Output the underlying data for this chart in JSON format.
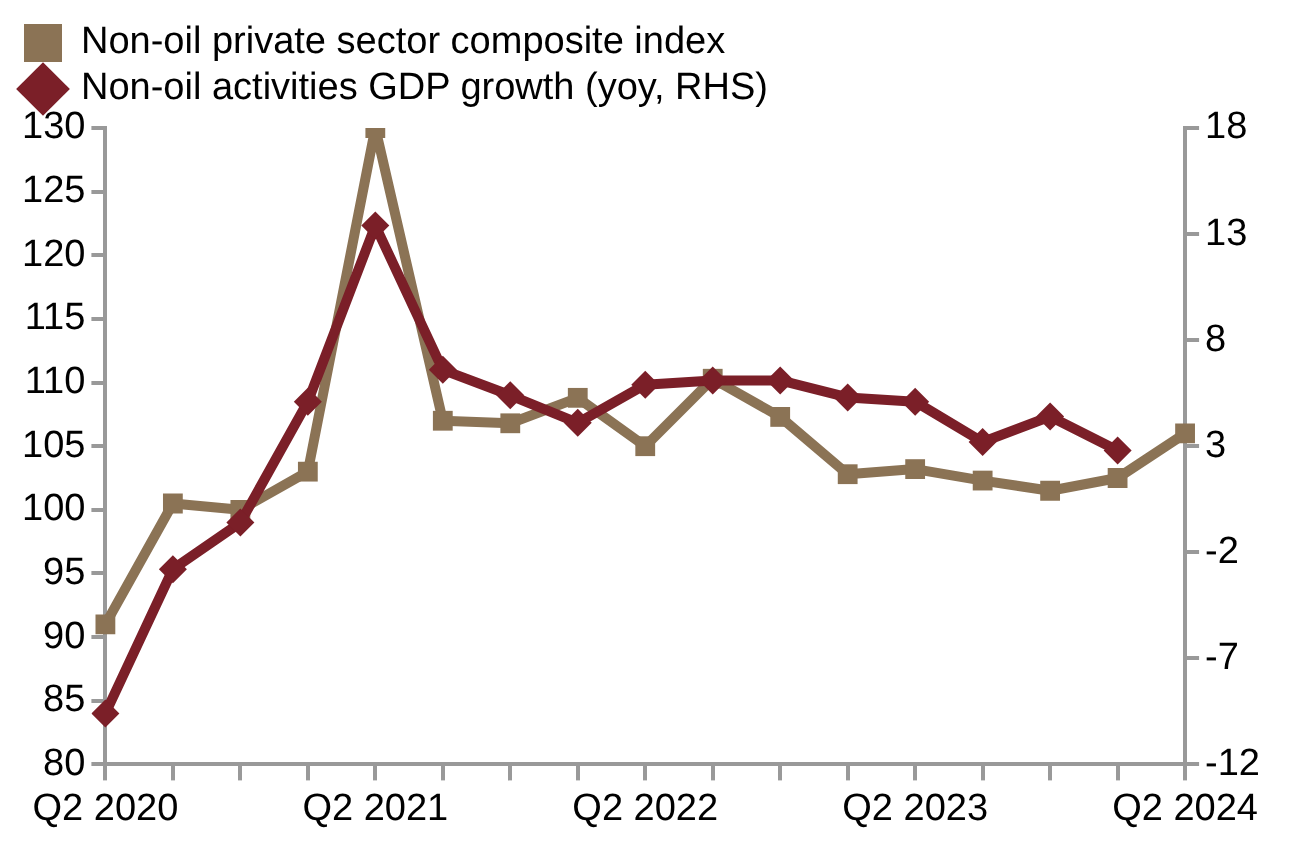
{
  "chart_data": {
    "type": "line",
    "categories": [
      "Q2 2020",
      null,
      null,
      null,
      "Q2 2021",
      null,
      null,
      null,
      "Q2 2022",
      null,
      null,
      null,
      "Q2 2023",
      null,
      null,
      null,
      "Q2 2024"
    ],
    "series": [
      {
        "name": "Non-oil private sector composite index",
        "color": "#8b7355",
        "marker": "square",
        "values": [
          91,
          100.5,
          100,
          103,
          130,
          107,
          106.8,
          108.8,
          105,
          110.3,
          107.3,
          102.8,
          103.2,
          102.3,
          101.5,
          102.5,
          106
        ]
      },
      {
        "name": "Non-oil activities GDP growth (yoy, RHS)",
        "color": "#7b1f28",
        "marker": "diamond",
        "axis": "y2",
        "values": [
          -9.6,
          -2.8,
          -0.6,
          5.1,
          13.4,
          6.6,
          5.4,
          4.1,
          5.9,
          6.1,
          6.1,
          5.3,
          5.1,
          3.2,
          4.4,
          2.8,
          null
        ]
      }
    ],
    "ylim": [
      80,
      130
    ],
    "yticks": [
      80,
      85,
      90,
      95,
      100,
      105,
      110,
      115,
      120,
      125,
      130
    ],
    "y2lim": [
      -12,
      18
    ],
    "y2ticks": [
      -12,
      -7,
      -2,
      3,
      8,
      13,
      18
    ],
    "grid": false,
    "legend": "top left",
    "line_style": "solid"
  }
}
